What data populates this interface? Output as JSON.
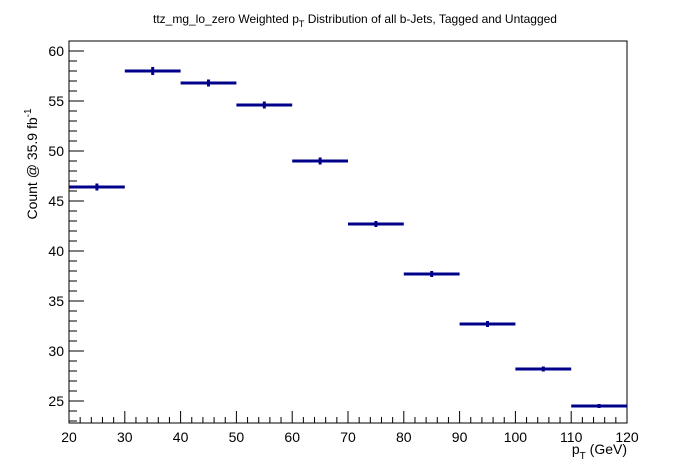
{
  "chart_data": {
    "type": "scatter",
    "title_main": "ttz_mg_lo_zero Weighted p",
    "title_sub": "T",
    "title_rest": " Distribution of all b-Jets, Tagged and Untagged",
    "xlabel_main": "p",
    "xlabel_sub": "T",
    "xlabel_rest": " (GeV)",
    "ylabel_main": "Count @ 35.9 fb",
    "ylabel_sup": "-1",
    "xlim": [
      20,
      120
    ],
    "ylim": [
      22.8,
      61
    ],
    "x_ticks": [
      20,
      30,
      40,
      50,
      60,
      70,
      80,
      90,
      100,
      110,
      120
    ],
    "y_ticks": [
      25,
      30,
      35,
      40,
      45,
      50,
      55,
      60
    ],
    "bin_width": 10,
    "points": [
      {
        "x": 25,
        "y": 46.4,
        "err": 0.35
      },
      {
        "x": 35,
        "y": 58.0,
        "err": 0.4
      },
      {
        "x": 45,
        "y": 56.8,
        "err": 0.35
      },
      {
        "x": 55,
        "y": 54.6,
        "err": 0.35
      },
      {
        "x": 65,
        "y": 49.0,
        "err": 0.35
      },
      {
        "x": 75,
        "y": 42.7,
        "err": 0.3
      },
      {
        "x": 85,
        "y": 37.7,
        "err": 0.3
      },
      {
        "x": 95,
        "y": 32.7,
        "err": 0.3
      },
      {
        "x": 105,
        "y": 28.2,
        "err": 0.25
      },
      {
        "x": 115,
        "y": 24.5,
        "err": 0.2
      }
    ],
    "color": "#00008b",
    "grid": false,
    "legend": "none"
  }
}
